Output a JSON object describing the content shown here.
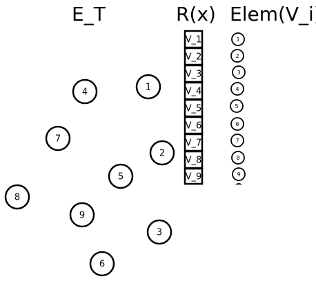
{
  "headers": {
    "et": "E_T",
    "rx": "R(x)",
    "elem": "Elem(V_i)"
  },
  "et_nodes": [
    "1",
    "2",
    "3",
    "4",
    "5",
    "6",
    "7",
    "8",
    "9"
  ],
  "rx_cells": [
    "V_1",
    "V_2",
    "V_3",
    "V_4",
    "V_5",
    "V_6",
    "V_7",
    "V_8",
    "V_9"
  ],
  "elem_nodes": [
    "1",
    "2",
    "3",
    "4",
    "5",
    "6",
    "7",
    "8",
    "9"
  ],
  "colors": {
    "stroke": "#000000",
    "fill": "#ffffff",
    "text": "#000000"
  }
}
